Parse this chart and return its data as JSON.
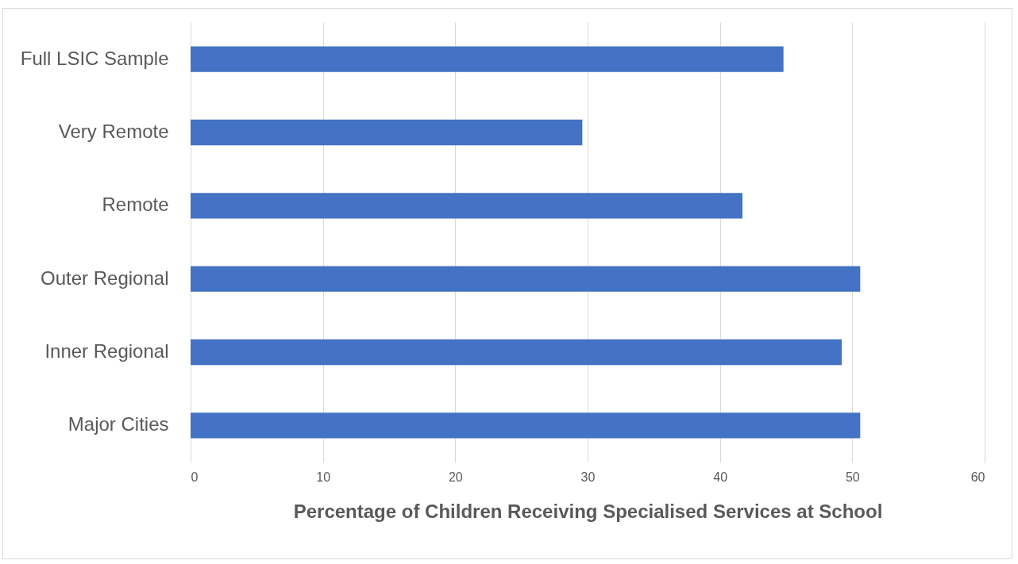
{
  "chart_data": {
    "type": "bar",
    "orientation": "horizontal",
    "xlabel": "Percentage of Children Receiving Specialised Services at School",
    "categories": [
      "Full LSIC Sample",
      "Very Remote",
      "Remote",
      "Outer Regional",
      "Inner Regional",
      "Major Cities"
    ],
    "values": [
      44.8,
      29.6,
      41.7,
      50.6,
      49.2,
      50.6
    ],
    "color": "#4472c4",
    "xlim": [
      0,
      60
    ],
    "xticks": [
      0,
      10,
      20,
      30,
      40,
      50,
      60
    ],
    "grid": "x"
  }
}
